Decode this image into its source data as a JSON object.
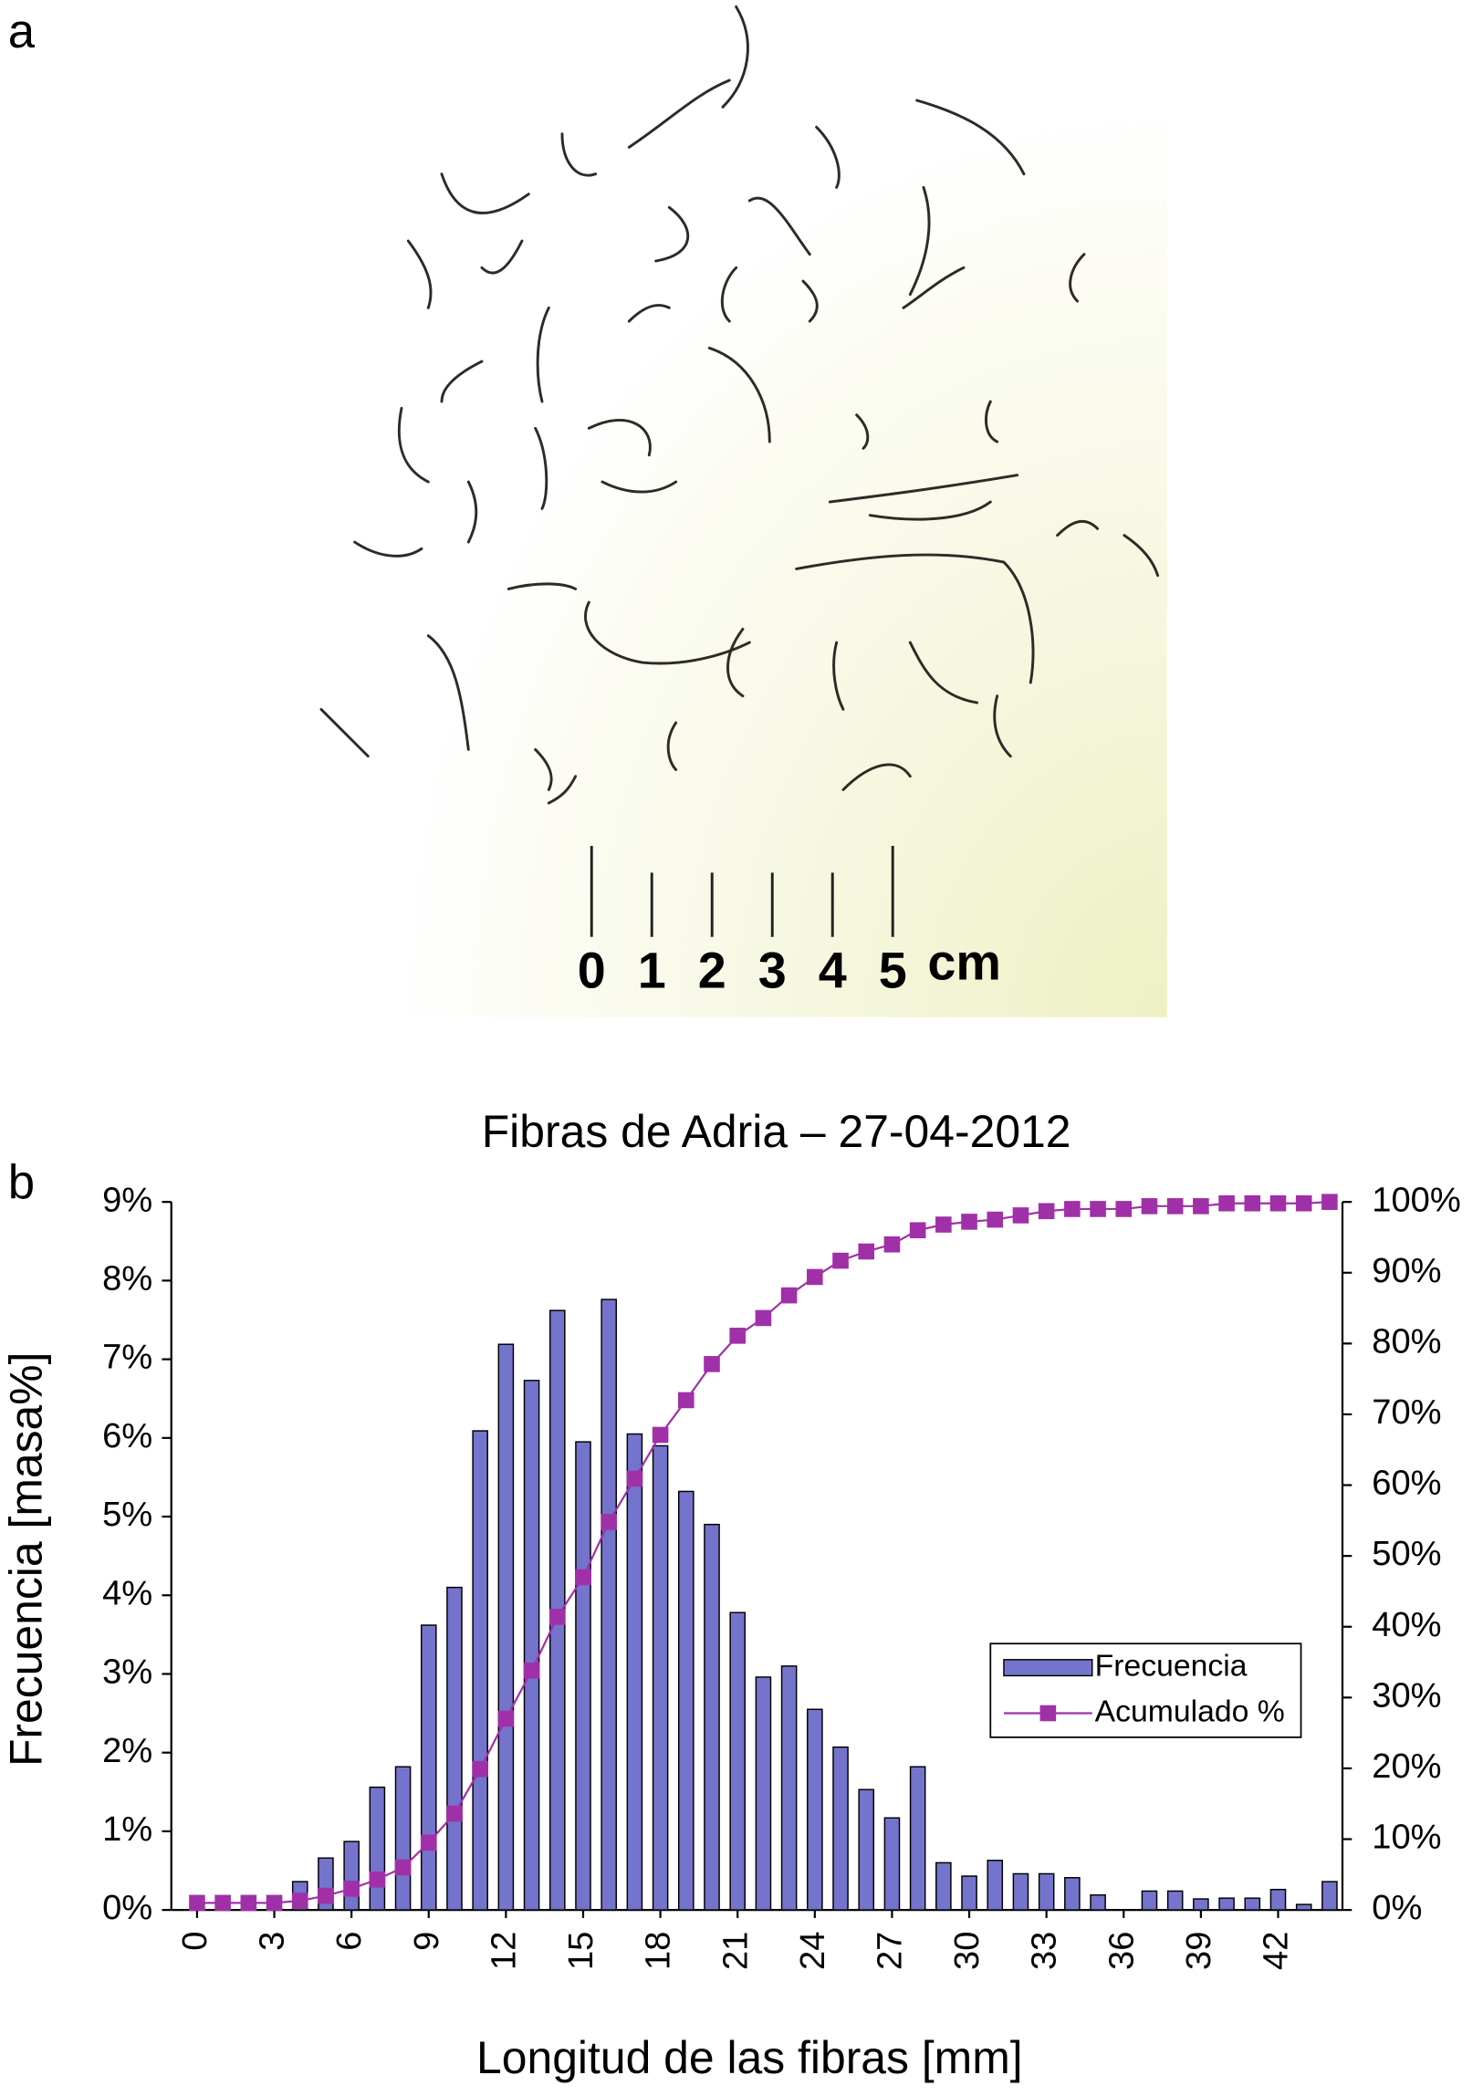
{
  "panel_labels": [
    "a",
    "b"
  ],
  "scale_bar": {
    "ticks": [
      0,
      1,
      2,
      3,
      4,
      5
    ],
    "unit": "cm"
  },
  "chart_data": {
    "type": "bar",
    "title": "Fibras de Adria – 27-04-2012",
    "x_label": "Longitud de las fibras [mm]",
    "y_label": "Frecuencia [masa%]",
    "x": [
      0,
      1,
      2,
      3,
      4,
      5,
      6,
      7,
      8,
      9,
      10,
      11,
      12,
      13,
      14,
      15,
      16,
      17,
      18,
      19,
      20,
      21,
      22,
      23,
      24,
      25,
      26,
      27,
      28,
      29,
      30,
      31,
      32,
      33,
      34,
      35,
      36,
      37,
      38,
      39,
      40,
      41,
      42,
      43,
      44
    ],
    "xlim": [
      -1,
      44.5
    ],
    "xticks": [
      0,
      3,
      6,
      9,
      12,
      15,
      18,
      21,
      24,
      27,
      30,
      33,
      36,
      39,
      42
    ],
    "ylim": [
      0,
      9
    ],
    "yticks": [
      {
        "value": 0,
        "label": "0%"
      },
      {
        "value": 1,
        "label": "1%"
      },
      {
        "value": 2,
        "label": "2%"
      },
      {
        "value": 3,
        "label": "3%"
      },
      {
        "value": 4,
        "label": "4%"
      },
      {
        "value": 5,
        "label": "5%"
      },
      {
        "value": 6,
        "label": "6%"
      },
      {
        "value": 7,
        "label": "7%"
      },
      {
        "value": 8,
        "label": "8%"
      },
      {
        "value": 9,
        "label": "9%"
      }
    ],
    "y2lim": [
      0,
      100
    ],
    "y2ticks": [
      {
        "value": 0,
        "label": "0%"
      },
      {
        "value": 10,
        "label": "10%"
      },
      {
        "value": 20,
        "label": "20%"
      },
      {
        "value": 30,
        "label": "30%"
      },
      {
        "value": 40,
        "label": "40%"
      },
      {
        "value": 50,
        "label": "50%"
      },
      {
        "value": 60,
        "label": "60%"
      },
      {
        "value": 70,
        "label": "70%"
      },
      {
        "value": 80,
        "label": "80%"
      },
      {
        "value": 90,
        "label": "90%"
      },
      {
        "value": 100,
        "label": "100%"
      }
    ],
    "grid": false,
    "legend": "right",
    "series": [
      {
        "name": "Frecuencia",
        "type": "bar",
        "color": "#7474cc",
        "values": [
          0,
          0,
          0,
          0,
          0.36,
          0.66,
          0.87,
          1.56,
          1.82,
          3.62,
          4.1,
          6.09,
          7.19,
          6.73,
          7.62,
          5.95,
          7.76,
          6.05,
          5.9,
          5.32,
          4.9,
          3.78,
          2.96,
          3.1,
          2.55,
          2.07,
          1.53,
          1.17,
          1.82,
          0.6,
          0.43,
          0.63,
          0.46,
          0.46,
          0.41,
          0.19,
          0,
          0.24,
          0.24,
          0.14,
          0.15,
          0.15,
          0.26,
          0.07,
          0.36
        ]
      },
      {
        "name": "Acumulado %",
        "type": "line",
        "axis": "y2",
        "color": "#a030a8",
        "values": [
          1,
          1,
          1,
          1,
          1.3,
          2,
          3,
          4.3,
          6,
          9.5,
          13.6,
          19.9,
          27,
          33.8,
          41.4,
          47,
          54.8,
          60.9,
          67.1,
          72,
          77.1,
          81.1,
          83.6,
          86.8,
          89.4,
          91.7,
          93,
          94,
          96,
          96.8,
          97.2,
          97.5,
          98.1,
          98.7,
          99,
          99,
          99,
          99.4,
          99.4,
          99.4,
          99.8,
          99.8,
          99.8,
          99.8,
          100
        ]
      }
    ]
  }
}
